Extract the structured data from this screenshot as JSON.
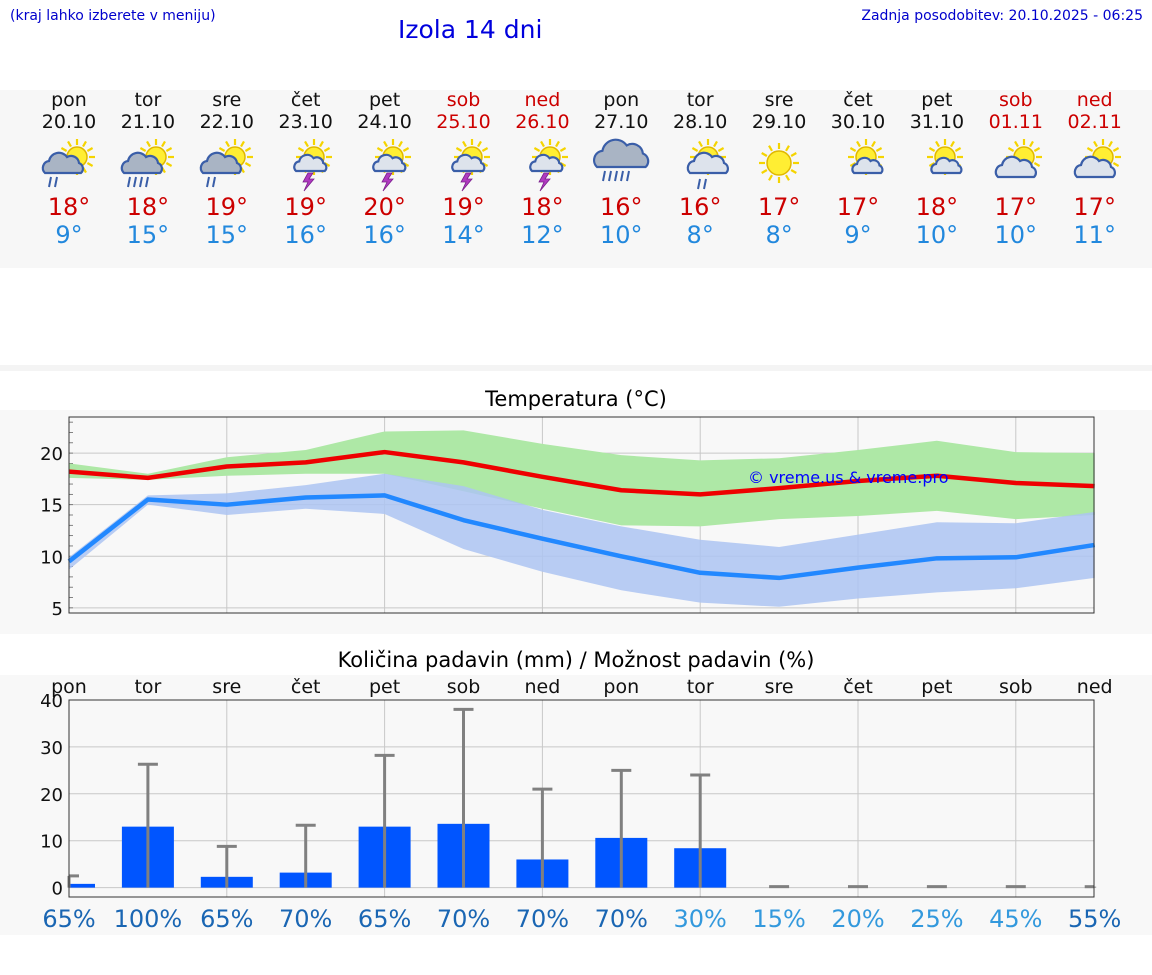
{
  "header": {
    "hint": "(kraj lahko izberete v meniju)",
    "title": "Izola 14 dni",
    "updated": "Zadnja posodobitev: 20.10.2025 - 06:25"
  },
  "days": [
    {
      "name": "pon",
      "date": "20.10",
      "icon": "sun-cloud-rain-icon",
      "kind": "rain",
      "max": "18°",
      "min": "9°",
      "weekend": false
    },
    {
      "name": "tor",
      "date": "21.10",
      "icon": "sun-cloud-heavy-rain-icon",
      "kind": "heavyrain",
      "max": "18°",
      "min": "15°",
      "weekend": false
    },
    {
      "name": "sre",
      "date": "22.10",
      "icon": "sun-cloud-rain-icon",
      "kind": "rain",
      "max": "19°",
      "min": "15°",
      "weekend": false
    },
    {
      "name": "čet",
      "date": "23.10",
      "icon": "sun-cloud-thunder-icon",
      "kind": "thunder",
      "max": "19°",
      "min": "16°",
      "weekend": false
    },
    {
      "name": "pet",
      "date": "24.10",
      "icon": "sun-cloud-thunder-icon",
      "kind": "thunder",
      "max": "20°",
      "min": "16°",
      "weekend": false
    },
    {
      "name": "sob",
      "date": "25.10",
      "icon": "sun-cloud-thunder-icon",
      "kind": "thunder",
      "max": "19°",
      "min": "14°",
      "weekend": true
    },
    {
      "name": "ned",
      "date": "26.10",
      "icon": "sun-cloud-thunder-icon",
      "kind": "thunder",
      "max": "18°",
      "min": "12°",
      "weekend": true
    },
    {
      "name": "pon",
      "date": "27.10",
      "icon": "cloud-heavy-rain-icon",
      "kind": "cloudrain",
      "max": "16°",
      "min": "10°",
      "weekend": false
    },
    {
      "name": "tor",
      "date": "28.10",
      "icon": "sun-cloud-rain-icon",
      "kind": "sunrain",
      "max": "16°",
      "min": "8°",
      "weekend": false
    },
    {
      "name": "sre",
      "date": "29.10",
      "icon": "sun-icon",
      "kind": "sun",
      "max": "17°",
      "min": "8°",
      "weekend": false
    },
    {
      "name": "čet",
      "date": "30.10",
      "icon": "sun-small-cloud-icon",
      "kind": "suncloud",
      "max": "17°",
      "min": "9°",
      "weekend": false
    },
    {
      "name": "pet",
      "date": "31.10",
      "icon": "sun-small-cloud-icon",
      "kind": "suncloud",
      "max": "18°",
      "min": "10°",
      "weekend": false
    },
    {
      "name": "sob",
      "date": "01.11",
      "icon": "sun-cloud-icon",
      "kind": "cloudy",
      "max": "17°",
      "min": "10°",
      "weekend": true
    },
    {
      "name": "ned",
      "date": "02.11",
      "icon": "sun-cloud-icon",
      "kind": "cloudy",
      "max": "17°",
      "min": "11°",
      "weekend": true
    }
  ],
  "chart_data": [
    {
      "type": "line",
      "title": "Temperatura (°C)",
      "watermark": "© vreme.us & vreme.pro",
      "x": [
        0,
        1,
        2,
        3,
        4,
        5,
        6,
        7,
        8,
        9,
        10,
        11,
        12,
        13
      ],
      "ylim": [
        4.5,
        23.5
      ],
      "yticks": [
        5,
        10,
        15,
        20
      ],
      "grid": true,
      "colors": {
        "max": "#ee0000",
        "min": "#2288ff",
        "max_band": "#aee8a6",
        "min_band": "#adc4f2"
      },
      "series": [
        {
          "values": [
            18.2,
            17.6,
            18.7,
            19.1,
            20.1,
            19.1,
            17.7,
            16.4,
            16.0,
            16.6,
            17.3,
            17.8,
            17.1,
            16.8
          ]
        },
        {
          "values": [
            9.5,
            15.5,
            15.0,
            15.7,
            15.9,
            13.5,
            11.7,
            10.0,
            8.4,
            7.9,
            8.9,
            9.8,
            9.9,
            11.1
          ]
        }
      ],
      "bands": [
        {
          "lower": [
            17.6,
            17.4,
            17.8,
            18.0,
            18.0,
            16.3,
            14.6,
            13.0,
            12.9,
            13.6,
            13.9,
            14.4,
            13.6,
            14.0
          ],
          "upper": [
            19.0,
            18.0,
            19.6,
            20.3,
            22.1,
            22.2,
            20.9,
            19.8,
            19.3,
            19.5,
            20.3,
            21.2,
            20.1,
            20.0
          ]
        },
        {
          "lower": [
            8.7,
            15.0,
            14.0,
            14.6,
            14.1,
            10.7,
            8.5,
            6.7,
            5.5,
            5.1,
            5.9,
            6.5,
            6.9,
            7.9
          ],
          "upper": [
            9.9,
            15.9,
            16.1,
            16.9,
            18.0,
            16.8,
            14.5,
            12.9,
            11.6,
            10.9,
            12.1,
            13.3,
            13.2,
            14.3
          ]
        }
      ]
    },
    {
      "type": "bar",
      "title": "Količina padavin (mm) / Možnost padavin (%)",
      "categories": [
        "pon",
        "tor",
        "sre",
        "čet",
        "pet",
        "sob",
        "ned",
        "pon",
        "tor",
        "sre",
        "čet",
        "pet",
        "sob",
        "ned"
      ],
      "values": [
        0.8,
        13.0,
        2.3,
        3.2,
        13.0,
        13.6,
        6.0,
        10.6,
        8.4,
        0,
        0,
        0,
        0,
        0
      ],
      "error_max": [
        2.5,
        26.3,
        8.8,
        13.3,
        28.2,
        38.0,
        21.0,
        25.0,
        24.0,
        0.2,
        0.2,
        0.2,
        0.2,
        0.2
      ],
      "probability": [
        "65%",
        "100%",
        "65%",
        "70%",
        "65%",
        "70%",
        "70%",
        "70%",
        "30%",
        "15%",
        "20%",
        "25%",
        "45%",
        "55%"
      ],
      "ylim": [
        -2,
        40
      ],
      "yticks": [
        0,
        10,
        20,
        30,
        40
      ],
      "grid": true,
      "colors": {
        "bar": "#0055ff",
        "whisker": "#808080",
        "prob_high": "#1a66b3",
        "prob_low": "#3399dd"
      }
    }
  ]
}
